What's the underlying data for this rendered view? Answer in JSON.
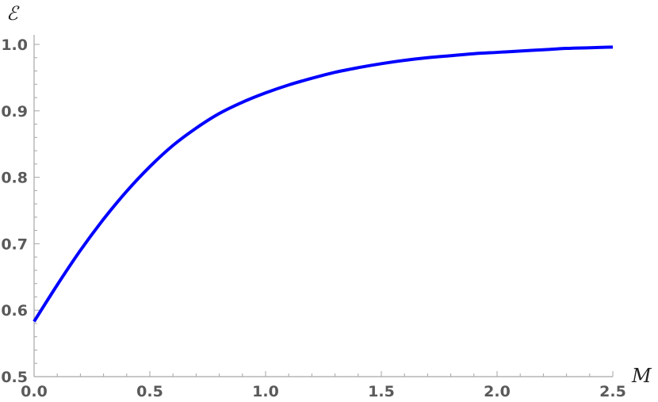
{
  "chart_data": {
    "type": "line",
    "xlabel": "M",
    "ylabel": "ℰ",
    "xlim": [
      0,
      2.5
    ],
    "ylim": [
      0.5,
      1.0
    ],
    "x_ticks": [
      "0.0",
      "0.5",
      "1.0",
      "1.5",
      "2.0",
      "2.5"
    ],
    "y_ticks": [
      "0.5",
      "0.6",
      "0.7",
      "0.8",
      "0.9",
      "1.0"
    ],
    "grid": false,
    "series": [
      {
        "color": "#0000ff",
        "x": [
          0.0,
          0.1,
          0.2,
          0.3,
          0.4,
          0.5,
          0.6,
          0.7,
          0.8,
          0.9,
          1.0,
          1.1,
          1.2,
          1.3,
          1.4,
          1.5,
          1.6,
          1.7,
          1.8,
          1.9,
          2.0,
          2.1,
          2.2,
          2.3,
          2.4,
          2.5
        ],
        "y": [
          0.583,
          0.638,
          0.69,
          0.737,
          0.779,
          0.816,
          0.848,
          0.874,
          0.896,
          0.913,
          0.927,
          0.939,
          0.949,
          0.958,
          0.965,
          0.971,
          0.976,
          0.98,
          0.983,
          0.986,
          0.988,
          0.99,
          0.992,
          0.994,
          0.995,
          0.996
        ]
      }
    ]
  }
}
